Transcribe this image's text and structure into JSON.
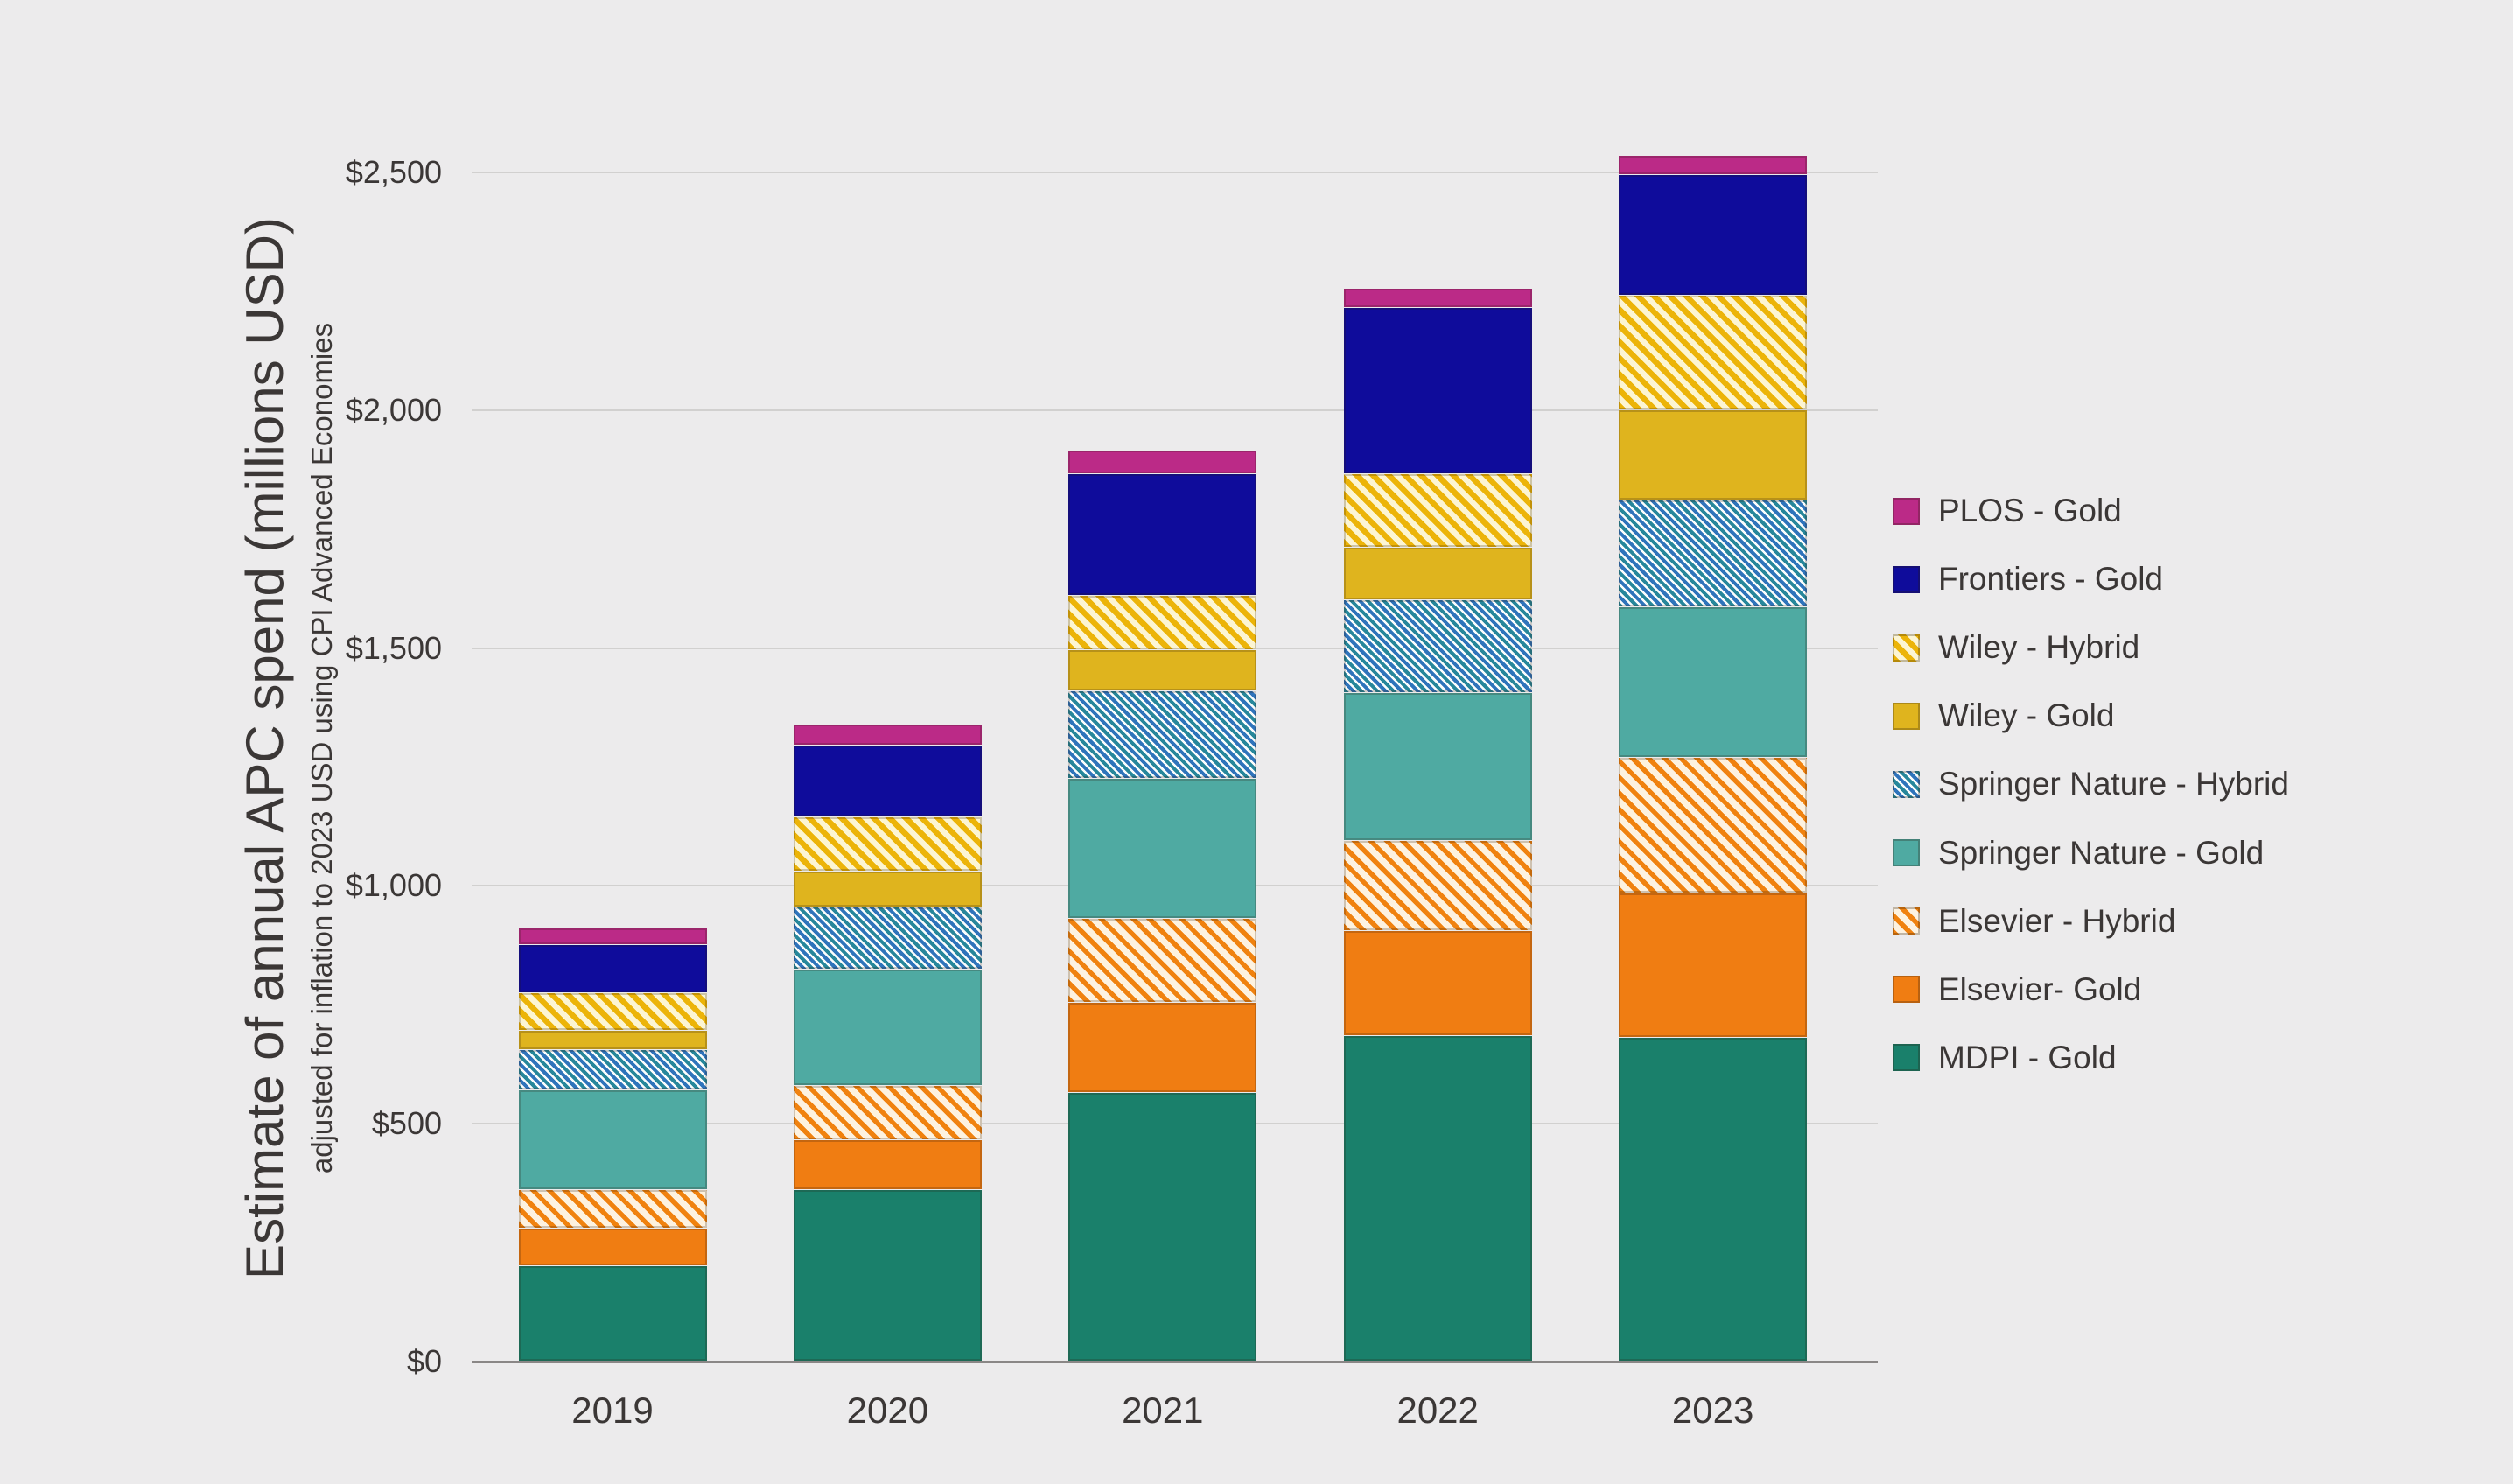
{
  "colors": {
    "background": "#ECEBEC",
    "grid": "#D1D0CF",
    "zero_axis": "#8A8786",
    "text": "#3B3736"
  },
  "y_axis": {
    "title": "Estimate of annual APC spend (millions USD)",
    "subtitle": "adjusted for inflation to 2023 USD using CPI Advanced Economies",
    "ticks": [
      {
        "label": "$0",
        "value": 0
      },
      {
        "label": "$500",
        "value": 500
      },
      {
        "label": "$1,000",
        "value": 1000
      },
      {
        "label": "$1,500",
        "value": 1500
      },
      {
        "label": "$2,000",
        "value": 2000
      },
      {
        "label": "$2,500",
        "value": 2500
      }
    ]
  },
  "chart_data": {
    "type": "bar",
    "stacked": true,
    "grid": true,
    "legend_position": "right",
    "title": "",
    "xlabel": "",
    "ylabel": "Estimate of annual APC spend (millions USD)",
    "ylabel_note": "adjusted for inflation to 2023 USD using CPI Advanced Economies",
    "ylim": [
      0,
      2600
    ],
    "categories": [
      "2019",
      "2020",
      "2021",
      "2022",
      "2023"
    ],
    "series": [
      {
        "name": "MDPI - Gold",
        "values": [
          200,
          360,
          565,
          685,
          680
        ],
        "color": "#1A806B",
        "pattern": "solid"
      },
      {
        "name": "Elsevier- Gold",
        "values": [
          80,
          105,
          190,
          220,
          305
        ],
        "color": "#F07D12",
        "pattern": "solid"
      },
      {
        "name": "Elsevier - Hybrid",
        "values": [
          80,
          115,
          175,
          190,
          285
        ],
        "color": "#F0820F",
        "pattern": "hatch",
        "hatch_bg": "#FDF2E0",
        "hatch_stripe": 5.5
      },
      {
        "name": "Springer Nature - Gold",
        "values": [
          210,
          245,
          295,
          310,
          315
        ],
        "color": "#4FAAA2",
        "pattern": "solid"
      },
      {
        "name": "Springer Nature - Hybrid",
        "values": [
          85,
          130,
          185,
          195,
          225
        ],
        "color": "#27879B",
        "color2": "#2F74BB",
        "pattern": "hatch2",
        "hatch_bg": "#FBFDFD",
        "hatch_stripe": 4
      },
      {
        "name": "Wiley - Gold",
        "values": [
          40,
          75,
          85,
          110,
          190
        ],
        "color": "#DFB41E",
        "pattern": "solid"
      },
      {
        "name": "Wiley - Hybrid",
        "values": [
          80,
          115,
          115,
          155,
          240
        ],
        "color": "#ECB409",
        "pattern": "hatch",
        "hatch_bg": "#FCF5D3",
        "hatch_stripe": 6.5
      },
      {
        "name": "Frontiers - Gold",
        "values": [
          100,
          150,
          255,
          350,
          255
        ],
        "color": "#0F0C9B",
        "pattern": "solid"
      },
      {
        "name": "PLOS - Gold",
        "values": [
          35,
          45,
          50,
          40,
          40
        ],
        "color": "#BB2A87",
        "pattern": "solid"
      }
    ],
    "legend_top_to_bottom": [
      "PLOS - Gold",
      "Frontiers - Gold",
      "Wiley - Hybrid",
      "Wiley - Gold",
      "Springer Nature - Hybrid",
      "Springer Nature - Gold",
      "Elsevier - Hybrid",
      "Elsevier- Gold",
      "MDPI - Gold"
    ]
  }
}
